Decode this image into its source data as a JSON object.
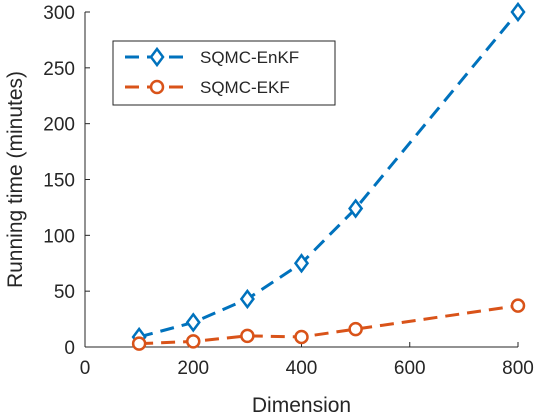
{
  "chart_data": {
    "type": "line",
    "xlabel": "Dimension",
    "ylabel": "Running time (minutes)",
    "xlim": [
      0,
      800
    ],
    "ylim": [
      0,
      300
    ],
    "x_ticks": [
      0,
      200,
      400,
      600,
      800
    ],
    "y_ticks": [
      0,
      50,
      100,
      150,
      200,
      250,
      300
    ],
    "grid": false,
    "legend_position": "top-left",
    "x": [
      100,
      200,
      300,
      400,
      500,
      800
    ],
    "series": [
      {
        "name": "SQMC-EnKF",
        "values": [
          9,
          22,
          43,
          75,
          124,
          300
        ],
        "color": "#0072BD",
        "marker": "diamond",
        "line_style": "dashed"
      },
      {
        "name": "SQMC-EKF",
        "values": [
          3,
          5,
          10,
          9,
          16,
          37
        ],
        "color": "#D95319",
        "marker": "circle",
        "line_style": "dashed"
      }
    ]
  }
}
